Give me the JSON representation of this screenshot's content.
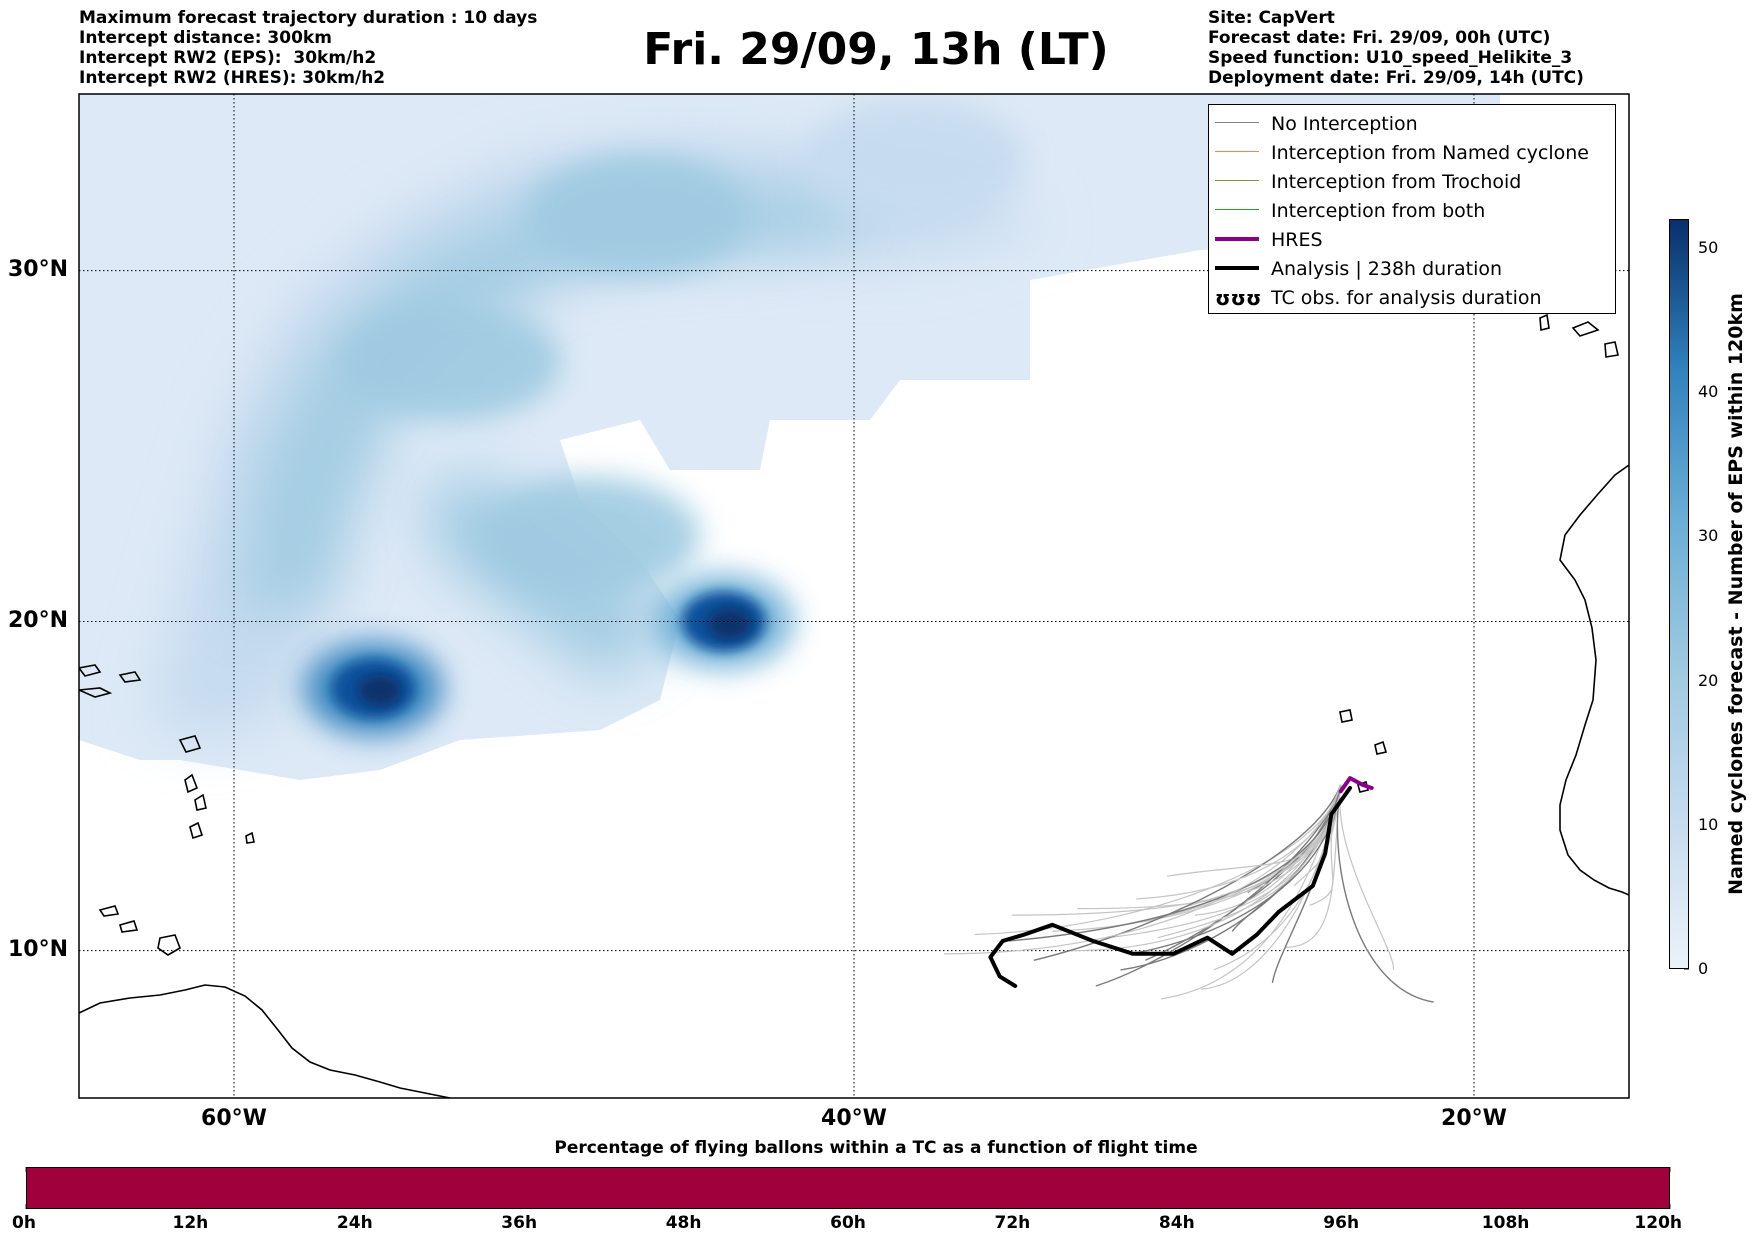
{
  "header": {
    "left_lines": [
      "Maximum forecast trajectory duration : 10 days",
      "Intercept distance: 300km",
      "Intercept RW2 (EPS):  30km/h2",
      "Intercept RW2 (HRES): 30km/h2"
    ],
    "title": "Fri. 29/09, 13h (LT)",
    "right_lines": [
      "Site: CapVert",
      "Forecast date: Fri. 29/09, 00h (UTC)",
      "Speed function: U10_speed_Helikite_3",
      "Deployment date: Fri. 29/09, 14h (UTC)"
    ]
  },
  "map": {
    "lon_range": [
      -65,
      -15
    ],
    "lat_range": [
      5.4,
      34.7
    ],
    "lat_labels": [
      {
        "lat": 30,
        "text": "30°N"
      },
      {
        "lat": 20,
        "text": "20°N"
      },
      {
        "lat": 10,
        "text": "10°N"
      }
    ],
    "lon_labels": [
      {
        "lon": -60,
        "text": "60°W"
      },
      {
        "lon": -40,
        "text": "40°W"
      },
      {
        "lon": -20,
        "text": "20°W"
      }
    ],
    "site": {
      "name": "CapVert",
      "lon": -24.3,
      "lat": 15.1
    },
    "density_blobs": [
      {
        "lon": -55.5,
        "lat": 18.0,
        "value": 52
      },
      {
        "lon": -44.2,
        "lat": 20.0,
        "value": 50
      },
      {
        "lon": -48.5,
        "lat": 22.5,
        "value": 28
      },
      {
        "lon": -53.0,
        "lat": 27.5,
        "value": 22
      },
      {
        "lon": -47.0,
        "lat": 31.5,
        "value": 22
      },
      {
        "lon": -38.0,
        "lat": 33.0,
        "value": 18
      }
    ],
    "analysis_track": [
      [
        -24.0,
        15.0
      ],
      [
        -24.6,
        14.2
      ],
      [
        -24.8,
        13.0
      ],
      [
        -25.2,
        12.0
      ],
      [
        -26.3,
        11.2
      ],
      [
        -27.0,
        10.5
      ],
      [
        -27.8,
        9.9
      ],
      [
        -28.6,
        10.4
      ],
      [
        -29.7,
        9.9
      ],
      [
        -31.0,
        9.9
      ],
      [
        -32.3,
        10.3
      ],
      [
        -33.6,
        10.8
      ],
      [
        -34.5,
        10.5
      ],
      [
        -35.2,
        10.3
      ],
      [
        -35.6,
        9.8
      ],
      [
        -35.3,
        9.2
      ],
      [
        -34.8,
        8.9
      ]
    ],
    "hres_track": [
      [
        -24.3,
        14.9
      ],
      [
        -24.0,
        15.3
      ],
      [
        -23.6,
        15.1
      ],
      [
        -23.3,
        15.0
      ]
    ],
    "fan_endpoints": [
      [
        -30.6,
        9.7
      ],
      [
        -30.6,
        10.9
      ],
      [
        -31.8,
        10.4
      ],
      [
        -31.4,
        9.4
      ],
      [
        -29.0,
        11.1
      ],
      [
        -26.1,
        10.1
      ],
      [
        -26.5,
        9.0
      ],
      [
        -28.4,
        9.4
      ],
      [
        -30.1,
        8.5
      ],
      [
        -27.3,
        11.8
      ],
      [
        -33.6,
        10.6
      ],
      [
        -34.9,
        11.1
      ],
      [
        -32.2,
        8.9
      ],
      [
        -29.5,
        11.3
      ],
      [
        -25.3,
        11.4
      ],
      [
        -31.1,
        9.9
      ],
      [
        -36.1,
        10.5
      ],
      [
        -33.0,
        10.0
      ],
      [
        -27.8,
        10.6
      ],
      [
        -30.2,
        10.4
      ],
      [
        -22.6,
        9.4
      ],
      [
        -21.3,
        8.4
      ],
      [
        -28.8,
        8.8
      ],
      [
        -32.8,
        11.3
      ],
      [
        -34.2,
        9.7
      ],
      [
        -25.8,
        12.0
      ],
      [
        -29.9,
        12.3
      ],
      [
        -35.0,
        10.3
      ],
      [
        -30.9,
        11.6
      ],
      [
        -37.1,
        9.9
      ]
    ]
  },
  "legend": {
    "items": [
      {
        "label": "No Interception",
        "color": "#808080",
        "width": 1.5
      },
      {
        "label": "Interception from Named cyclone",
        "color": "#ff7f50",
        "width": 1.5
      },
      {
        "label": "Interception from Trochoid",
        "color": "#998a3b",
        "width": 1.5
      },
      {
        "label": "Interception from both",
        "color": "#2ca02c",
        "width": 1.5
      },
      {
        "label": "HRES",
        "color": "#8b008b",
        "width": 4
      },
      {
        "label": "Analysis | 238h duration",
        "color": "#000000",
        "width": 4
      },
      {
        "label": "TC obs. for analysis duration",
        "color": "#000000",
        "width": 0,
        "symbol": "ʊʊʊ"
      }
    ]
  },
  "colorbar": {
    "label": "Named cyclones forecast - Number of EPS within 120km",
    "min": 0,
    "max": 52,
    "ticks": [
      0,
      10,
      20,
      30,
      40,
      50
    ]
  },
  "hbar": {
    "title": "Percentage of flying ballons within a TC as a function of flight time",
    "color": "#a0003c",
    "tick_labels": [
      "0h",
      "12h",
      "24h",
      "36h",
      "48h",
      "60h",
      "72h",
      "84h",
      "96h",
      "108h",
      "120h"
    ]
  }
}
